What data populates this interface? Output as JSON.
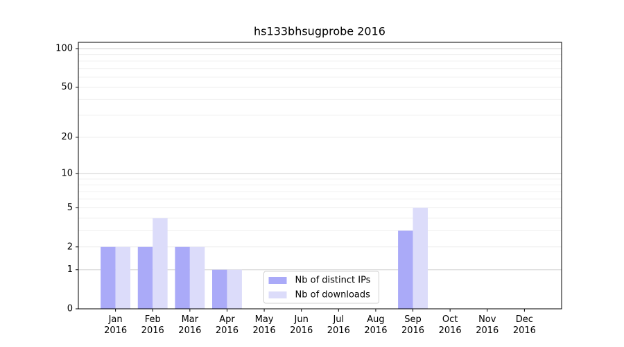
{
  "chart_data": {
    "type": "bar",
    "title": "hs133bhsugprobe 2016",
    "categories": [
      "Jan\n2016",
      "Feb\n2016",
      "Mar\n2016",
      "Apr\n2016",
      "May\n2016",
      "Jun\n2016",
      "Jul\n2016",
      "Aug\n2016",
      "Sep\n2016",
      "Oct\n2016",
      "Nov\n2016",
      "Dec\n2016"
    ],
    "series": [
      {
        "name": "Nb of distinct IPs",
        "color": "#aaaaf8",
        "values": [
          2,
          2,
          2,
          1,
          0,
          0,
          0,
          0,
          3,
          0,
          0,
          0
        ]
      },
      {
        "name": "Nb of downloads",
        "color": "#dcdcfa",
        "values": [
          2,
          4,
          2,
          1,
          0,
          0,
          0,
          0,
          5,
          0,
          0,
          0
        ]
      }
    ],
    "yscale": "log1p",
    "ylim": [
      0,
      112
    ],
    "yticks": [
      0,
      1,
      2,
      5,
      10,
      20,
      50,
      100
    ],
    "yminor": [
      3,
      4,
      6,
      7,
      8,
      9,
      30,
      40,
      60,
      70,
      80,
      90
    ],
    "grid": true,
    "legend": "lower center"
  }
}
